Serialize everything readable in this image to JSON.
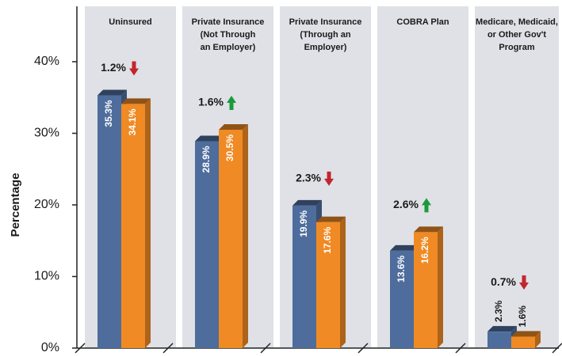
{
  "chart_data": {
    "type": "bar",
    "ylabel": "Percentage",
    "categories": [
      [
        "Uninsured"
      ],
      [
        "Private Insurance",
        "(Not Through",
        "an Employer)"
      ],
      [
        "Private Insurance",
        "(Through an",
        "Employer)"
      ],
      [
        "COBRA Plan"
      ],
      [
        "Medicare, Medicaid,",
        "or Other Gov't",
        "Program"
      ]
    ],
    "series": [
      {
        "color": "#4e6d9c",
        "values": [
          35.3,
          28.9,
          19.9,
          13.6,
          2.3
        ],
        "value_labels": [
          "35.3%",
          "28.9%",
          "19.9%",
          "13.6%",
          "2.3%"
        ]
      },
      {
        "color": "#f08a24",
        "values": [
          34.1,
          30.5,
          17.6,
          16.2,
          1.6
        ],
        "value_labels": [
          "34.1%",
          "30.5%",
          "17.6%",
          "16.2%",
          "1.6%"
        ]
      }
    ],
    "changes": {
      "values": [
        1.2,
        1.6,
        2.3,
        2.6,
        0.7
      ],
      "value_labels": [
        "1.2%",
        "1.6%",
        "2.3%",
        "2.6%",
        "0.7%"
      ],
      "directions": [
        "down",
        "up",
        "down",
        "up",
        "down"
      ],
      "colors": {
        "down": "#c0272d",
        "up": "#1a9a3c"
      }
    },
    "ylim": [
      0,
      40
    ],
    "yticks": [
      {
        "value": 0,
        "label": "0%"
      },
      {
        "value": 10,
        "label": "10%"
      },
      {
        "value": 20,
        "label": "20%"
      },
      {
        "value": 30,
        "label": "30%"
      },
      {
        "value": 40,
        "label": "40%"
      }
    ]
  }
}
